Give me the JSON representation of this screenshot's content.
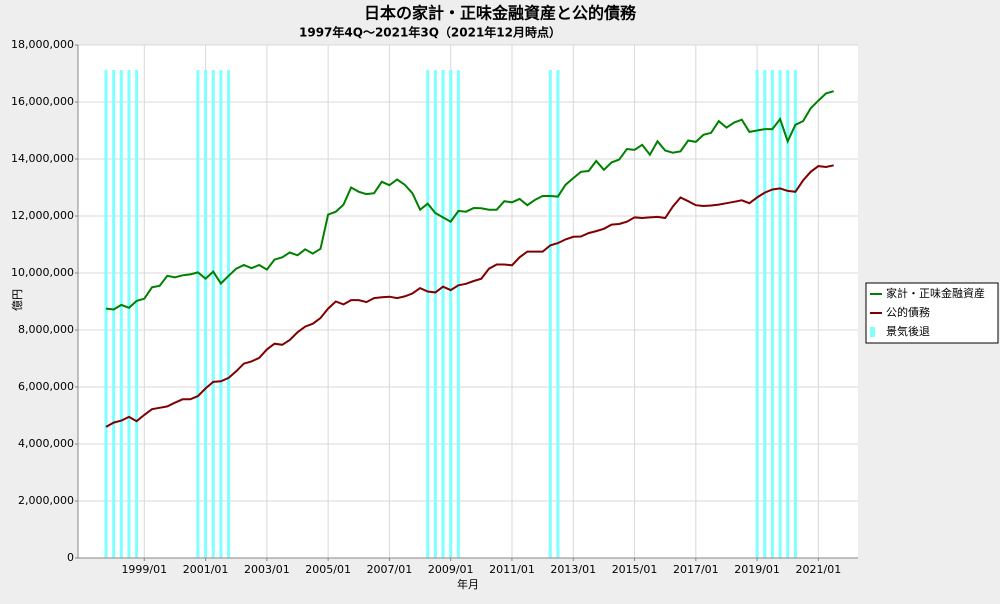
{
  "chart_data": {
    "type": "line",
    "title": "日本の家計・正味金融資産と公的債務",
    "subtitle": "1997年4Q～2021年3Q（2021年12月時点）",
    "x_label": "年月",
    "y_label": "億円",
    "x": [
      "1997/10",
      "1998/01",
      "1998/04",
      "1998/07",
      "1998/10",
      "1999/01",
      "1999/04",
      "1999/07",
      "1999/10",
      "2000/01",
      "2000/04",
      "2000/07",
      "2000/10",
      "2001/01",
      "2001/04",
      "2001/07",
      "2001/10",
      "2002/01",
      "2002/04",
      "2002/07",
      "2002/10",
      "2003/01",
      "2003/04",
      "2003/07",
      "2003/10",
      "2004/01",
      "2004/04",
      "2004/07",
      "2004/10",
      "2005/01",
      "2005/04",
      "2005/07",
      "2005/10",
      "2006/01",
      "2006/04",
      "2006/07",
      "2006/10",
      "2007/01",
      "2007/04",
      "2007/07",
      "2007/10",
      "2008/01",
      "2008/04",
      "2008/07",
      "2008/10",
      "2009/01",
      "2009/04",
      "2009/07",
      "2009/10",
      "2010/01",
      "2010/04",
      "2010/07",
      "2010/10",
      "2011/01",
      "2011/04",
      "2011/07",
      "2011/10",
      "2012/01",
      "2012/04",
      "2012/07",
      "2012/10",
      "2013/01",
      "2013/04",
      "2013/07",
      "2013/10",
      "2014/01",
      "2014/04",
      "2014/07",
      "2014/10",
      "2015/01",
      "2015/04",
      "2015/07",
      "2015/10",
      "2016/01",
      "2016/04",
      "2016/07",
      "2016/10",
      "2017/01",
      "2017/04",
      "2017/07",
      "2017/10",
      "2018/01",
      "2018/04",
      "2018/07",
      "2018/10",
      "2019/01",
      "2019/04",
      "2019/07",
      "2019/10",
      "2020/01",
      "2020/04",
      "2020/07",
      "2020/10",
      "2021/01",
      "2021/04",
      "2021/07"
    ],
    "xticks": [
      "1999/01",
      "2001/01",
      "2003/01",
      "2005/01",
      "2007/01",
      "2009/01",
      "2011/01",
      "2013/01",
      "2015/01",
      "2017/01",
      "2019/01",
      "2021/01"
    ],
    "ylim": [
      0,
      18000000
    ],
    "yticks": [
      0,
      {
        "value": 2000000,
        "label": "2,000,000"
      },
      {
        "value": 4000000,
        "label": "4,000,000"
      },
      {
        "value": 6000000,
        "label": "6,000,000"
      },
      {
        "value": 8000000,
        "label": "8,000,000"
      },
      {
        "value": 10000000,
        "label": "10,000,000"
      },
      {
        "value": 12000000,
        "label": "12,000,000"
      },
      {
        "value": 14000000,
        "label": "14,000,000"
      },
      {
        "value": 16000000,
        "label": "16,000,000"
      },
      {
        "value": 18000000,
        "label": "18,000,000"
      }
    ],
    "grid": true,
    "legend": "right",
    "series": [
      {
        "name": "家計・正味金融資産",
        "color": "#008000",
        "values": [
          8750000,
          8720000,
          8880000,
          8780000,
          9020000,
          9100000,
          9500000,
          9550000,
          9900000,
          9850000,
          9920000,
          9950000,
          10020000,
          9800000,
          10050000,
          9630000,
          9900000,
          10150000,
          10280000,
          10170000,
          10280000,
          10120000,
          10470000,
          10550000,
          10720000,
          10620000,
          10830000,
          10680000,
          10850000,
          12050000,
          12150000,
          12400000,
          13000000,
          12850000,
          12770000,
          12800000,
          13200000,
          13080000,
          13280000,
          13100000,
          12800000,
          12220000,
          12430000,
          12100000,
          11950000,
          11800000,
          12180000,
          12150000,
          12280000,
          12270000,
          12220000,
          12220000,
          12520000,
          12480000,
          12600000,
          12380000,
          12570000,
          12700000,
          12700000,
          12680000,
          13100000,
          13330000,
          13550000,
          13580000,
          13930000,
          13620000,
          13880000,
          13980000,
          14350000,
          14320000,
          14500000,
          14150000,
          14620000,
          14300000,
          14220000,
          14270000,
          14650000,
          14600000,
          14850000,
          14920000,
          15330000,
          15100000,
          15280000,
          15380000,
          14950000,
          15000000,
          15050000,
          15050000,
          15400000,
          14620000,
          15200000,
          15330000,
          15780000,
          16050000,
          16300000,
          16380000
        ]
      },
      {
        "name": "公的債務",
        "color": "#800000",
        "values": [
          4600000,
          4750000,
          4820000,
          4950000,
          4800000,
          5020000,
          5220000,
          5270000,
          5320000,
          5450000,
          5570000,
          5570000,
          5680000,
          5950000,
          6180000,
          6200000,
          6320000,
          6550000,
          6820000,
          6900000,
          7020000,
          7320000,
          7520000,
          7480000,
          7650000,
          7920000,
          8120000,
          8220000,
          8420000,
          8750000,
          9000000,
          8900000,
          9050000,
          9050000,
          8980000,
          9120000,
          9150000,
          9170000,
          9120000,
          9180000,
          9280000,
          9470000,
          9350000,
          9320000,
          9520000,
          9400000,
          9570000,
          9620000,
          9720000,
          9800000,
          10150000,
          10300000,
          10300000,
          10270000,
          10550000,
          10750000,
          10750000,
          10750000,
          10970000,
          11050000,
          11180000,
          11270000,
          11280000,
          11400000,
          11470000,
          11550000,
          11700000,
          11720000,
          11800000,
          11950000,
          11930000,
          11950000,
          11970000,
          11930000,
          12330000,
          12650000,
          12520000,
          12380000,
          12350000,
          12370000,
          12400000,
          12450000,
          12500000,
          12550000,
          12450000,
          12650000,
          12820000,
          12930000,
          12970000,
          12880000,
          12850000,
          13250000,
          13550000,
          13750000,
          13720000,
          13780000
        ]
      }
    ],
    "recession": {
      "name": "景気後退",
      "color": "#80ffff",
      "x": [
        "1997/10",
        "1998/01",
        "1998/04",
        "1998/07",
        "1998/10",
        "2000/10",
        "2001/01",
        "2001/04",
        "2001/07",
        "2001/10",
        "2008/04",
        "2008/07",
        "2008/10",
        "2009/01",
        "2009/04",
        "2012/04",
        "2012/07",
        "2019/01",
        "2019/04",
        "2019/07",
        "2019/10",
        "2020/01",
        "2020/04"
      ]
    }
  }
}
